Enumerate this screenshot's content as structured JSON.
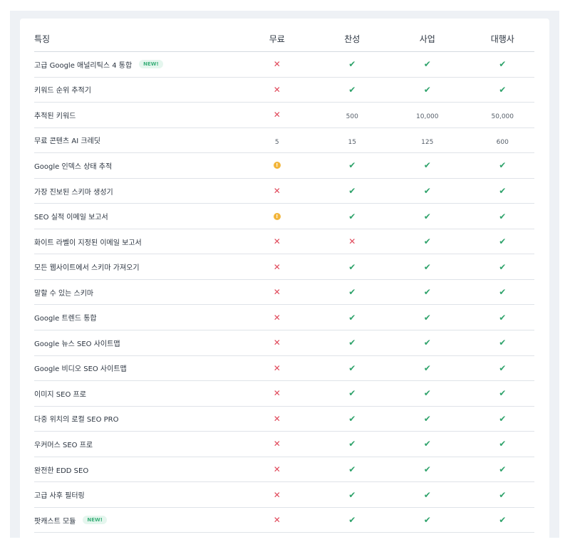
{
  "header": {
    "feature": "특징",
    "plans": [
      "무료",
      "찬성",
      "사업",
      "대행사"
    ]
  },
  "colors": {
    "check": "#2fa36b",
    "cross": "#e0485a",
    "warning": "#f2b53a",
    "badge_bg": "#e5f6ee",
    "badge_text": "#3bb07a"
  },
  "rows": [
    {
      "feature": "고급 Google 애널리틱스 4 통합",
      "badge": "NEW!",
      "values": [
        "cross",
        "check",
        "check",
        "check"
      ]
    },
    {
      "feature": "키워드 순위 추적기",
      "values": [
        "cross",
        "check",
        "check",
        "check"
      ]
    },
    {
      "feature": "추적된 키워드",
      "values": [
        "cross",
        "500",
        "10,000",
        "50,000"
      ]
    },
    {
      "feature": "무료 콘텐츠 AI 크레딧",
      "values": [
        "5",
        "15",
        "125",
        "600"
      ]
    },
    {
      "feature": "Google 인덱스 상태 추적",
      "values": [
        "warning",
        "check",
        "check",
        "check"
      ]
    },
    {
      "feature": "가장 진보된 스키마 생성기",
      "values": [
        "cross",
        "check",
        "check",
        "check"
      ]
    },
    {
      "feature": "SEO 실적 이메일 보고서",
      "values": [
        "warning",
        "check",
        "check",
        "check"
      ]
    },
    {
      "feature": "화이트 라벨이 지정된 이메일 보고서",
      "values": [
        "cross",
        "cross",
        "check",
        "check"
      ]
    },
    {
      "feature": "모든 웹사이트에서 스키마 가져오기",
      "values": [
        "cross",
        "check",
        "check",
        "check"
      ]
    },
    {
      "feature": "말할 수 있는 스키마",
      "values": [
        "cross",
        "check",
        "check",
        "check"
      ]
    },
    {
      "feature": "Google 트렌드 통합",
      "values": [
        "cross",
        "check",
        "check",
        "check"
      ]
    },
    {
      "feature": "Google 뉴스 SEO 사이트맵",
      "values": [
        "cross",
        "check",
        "check",
        "check"
      ]
    },
    {
      "feature": "Google 비디오 SEO 사이트맵",
      "values": [
        "cross",
        "check",
        "check",
        "check"
      ]
    },
    {
      "feature": "이미지 SEO 프로",
      "values": [
        "cross",
        "check",
        "check",
        "check"
      ]
    },
    {
      "feature": "다중 위치의 로컬 SEO PRO",
      "values": [
        "cross",
        "check",
        "check",
        "check"
      ]
    },
    {
      "feature": "우커머스 SEO 프로",
      "values": [
        "cross",
        "check",
        "check",
        "check"
      ]
    },
    {
      "feature": "완전한 EDD SEO",
      "values": [
        "cross",
        "check",
        "check",
        "check"
      ]
    },
    {
      "feature": "고급 사후 필터링",
      "values": [
        "cross",
        "check",
        "check",
        "check"
      ]
    },
    {
      "feature": "팟캐스트 모듈",
      "badge": "NEW!",
      "values": [
        "cross",
        "check",
        "check",
        "check"
      ]
    }
  ]
}
